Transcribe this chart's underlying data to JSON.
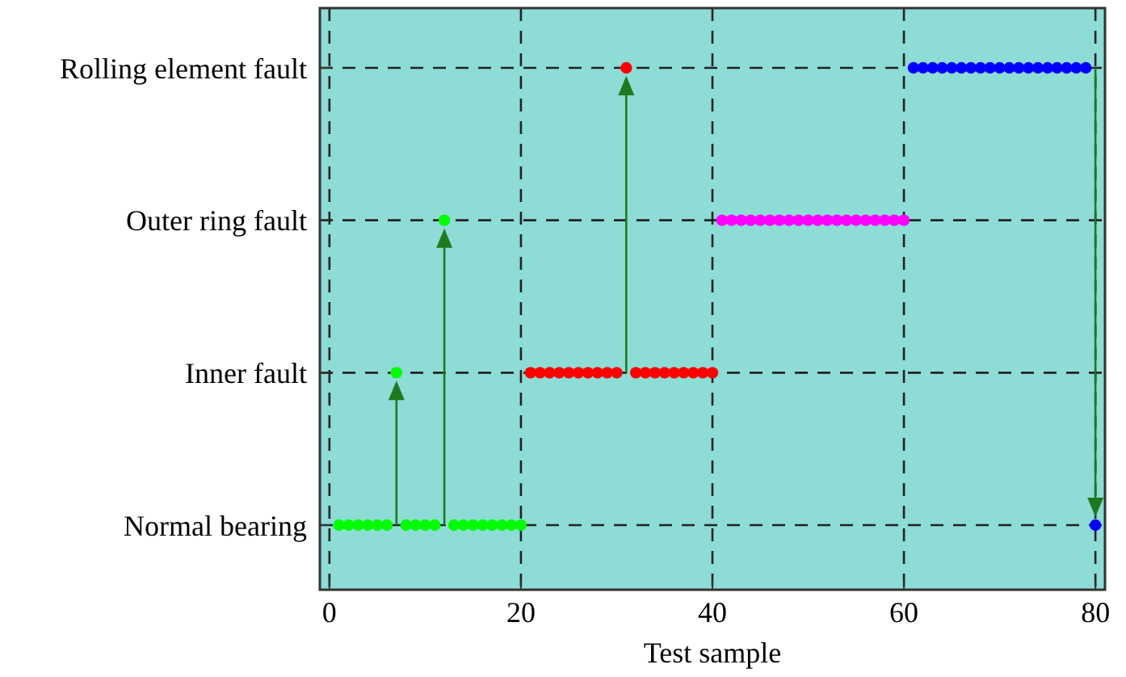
{
  "chart_data": {
    "type": "scatter",
    "orientation": "horizontal",
    "xlabel": "Test sample",
    "xlim": [
      -1,
      81
    ],
    "xticks": [
      0,
      20,
      40,
      60,
      80
    ],
    "categories": [
      "Rolling element fault",
      "Outer ring fault",
      "Inner fault",
      "Normal bearing"
    ],
    "grid": true,
    "line_style": "dashed",
    "marker": "circle",
    "series": [
      {
        "color": "#00ff00",
        "values": [
          1,
          2,
          3,
          4,
          5,
          6,
          7,
          8,
          9,
          10,
          11,
          12,
          13,
          14,
          15,
          16,
          17,
          18,
          19,
          20
        ],
        "x": [
          "Normal bearing",
          "Normal bearing",
          "Normal bearing",
          "Normal bearing",
          "Normal bearing",
          "Normal bearing",
          "Inner fault",
          "Normal bearing",
          "Normal bearing",
          "Normal bearing",
          "Normal bearing",
          "Outer ring fault",
          "Normal bearing",
          "Normal bearing",
          "Normal bearing",
          "Normal bearing",
          "Normal bearing",
          "Normal bearing",
          "Normal bearing",
          "Normal bearing"
        ]
      },
      {
        "color": "#ff0000",
        "values": [
          21,
          22,
          23,
          24,
          25,
          26,
          27,
          28,
          29,
          30,
          31,
          32,
          33,
          34,
          35,
          36,
          37,
          38,
          39,
          40
        ],
        "x": [
          "Inner fault",
          "Inner fault",
          "Inner fault",
          "Inner fault",
          "Inner fault",
          "Inner fault",
          "Inner fault",
          "Inner fault",
          "Inner fault",
          "Inner fault",
          "Rolling element fault",
          "Inner fault",
          "Inner fault",
          "Inner fault",
          "Inner fault",
          "Inner fault",
          "Inner fault",
          "Inner fault",
          "Inner fault",
          "Inner fault"
        ]
      },
      {
        "color": "#ff00ff",
        "values": [
          41,
          42,
          43,
          44,
          45,
          46,
          47,
          48,
          49,
          50,
          51,
          52,
          53,
          54,
          55,
          56,
          57,
          58,
          59,
          60
        ],
        "x": [
          "Outer ring fault",
          "Outer ring fault",
          "Outer ring fault",
          "Outer ring fault",
          "Outer ring fault",
          "Outer ring fault",
          "Outer ring fault",
          "Outer ring fault",
          "Outer ring fault",
          "Outer ring fault",
          "Outer ring fault",
          "Outer ring fault",
          "Outer ring fault",
          "Outer ring fault",
          "Outer ring fault",
          "Outer ring fault",
          "Outer ring fault",
          "Outer ring fault",
          "Outer ring fault",
          "Outer ring fault"
        ]
      },
      {
        "color": "#0000ff",
        "values": [
          61,
          62,
          63,
          64,
          65,
          66,
          67,
          68,
          69,
          70,
          71,
          72,
          73,
          74,
          75,
          76,
          77,
          78,
          79,
          80
        ],
        "x": [
          "Rolling element fault",
          "Rolling element fault",
          "Rolling element fault",
          "Rolling element fault",
          "Rolling element fault",
          "Rolling element fault",
          "Rolling element fault",
          "Rolling element fault",
          "Rolling element fault",
          "Rolling element fault",
          "Rolling element fault",
          "Rolling element fault",
          "Rolling element fault",
          "Rolling element fault",
          "Rolling element fault",
          "Rolling element fault",
          "Rolling element fault",
          "Rolling element fault",
          "Rolling element fault",
          "Normal bearing"
        ]
      }
    ]
  }
}
